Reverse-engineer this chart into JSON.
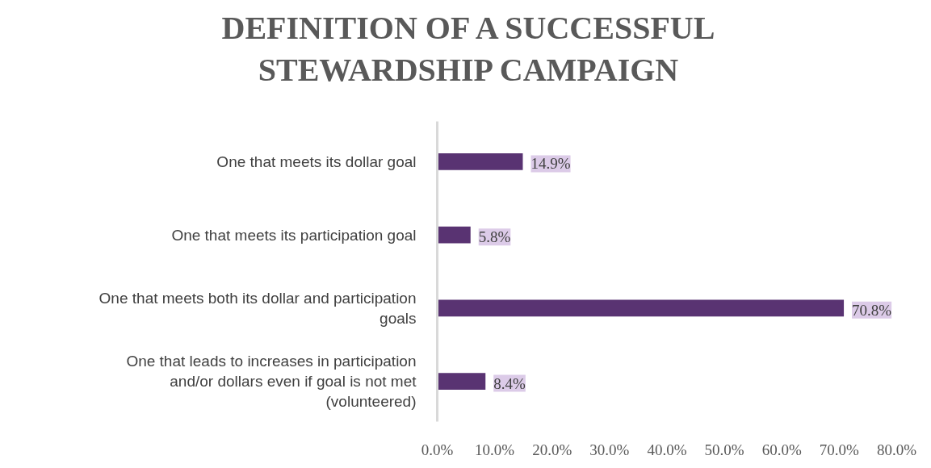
{
  "chart_data": {
    "type": "bar",
    "orientation": "horizontal",
    "title": "DEFINITION OF A SUCCESSFUL STEWARDSHIP CAMPAIGN",
    "categories": [
      "One that meets its dollar goal",
      "One that meets its participation goal",
      "One that meets both its dollar and participation goals",
      "One that leads to increases in participation and/or dollars even if goal is not met (volunteered)"
    ],
    "values": [
      14.9,
      5.8,
      70.8,
      8.4
    ],
    "value_labels": [
      "14.9%",
      "5.8%",
      "70.8%",
      "8.4%"
    ],
    "color": "#593372",
    "xlim": [
      0,
      80
    ],
    "xticks": [
      {
        "value": 0,
        "label": "0.0%"
      },
      {
        "value": 10,
        "label": "10.0%"
      },
      {
        "value": 20,
        "label": "20.0%"
      },
      {
        "value": 30,
        "label": "30.0%"
      },
      {
        "value": 40,
        "label": "40.0%"
      },
      {
        "value": 50,
        "label": "50.0%"
      },
      {
        "value": 60,
        "label": "60.0%"
      },
      {
        "value": 70,
        "label": "70.0%"
      },
      {
        "value": 80,
        "label": "80.0%"
      }
    ],
    "grid": false
  }
}
